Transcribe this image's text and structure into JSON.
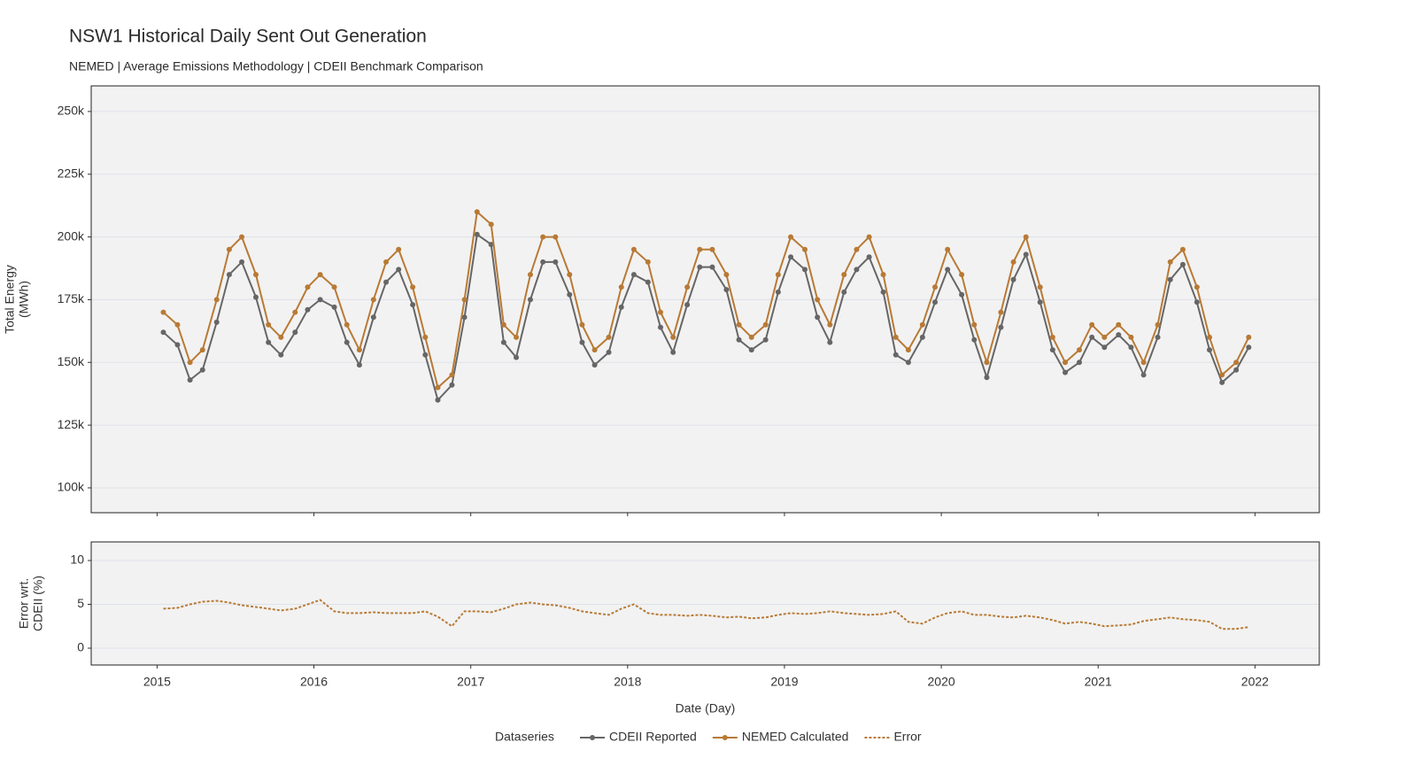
{
  "chart_data": [
    {
      "type": "line",
      "title": "NSW1 Historical Daily Sent Out Generation",
      "subtitle": "NEMED | Average Emissions Methodology | CDEII Benchmark Comparison",
      "y_label": [
        "Total Energy",
        "(MWh)"
      ],
      "legend_title": "Dataseries",
      "x": [
        2015.04,
        2015.13,
        2015.21,
        2015.29,
        2015.38,
        2015.46,
        2015.54,
        2015.63,
        2015.71,
        2015.79,
        2015.88,
        2015.96,
        2016.04,
        2016.13,
        2016.21,
        2016.29,
        2016.38,
        2016.46,
        2016.54,
        2016.63,
        2016.71,
        2016.79,
        2016.88,
        2016.96,
        2017.04,
        2017.13,
        2017.21,
        2017.29,
        2017.38,
        2017.46,
        2017.54,
        2017.63,
        2017.71,
        2017.79,
        2017.88,
        2017.96,
        2018.04,
        2018.13,
        2018.21,
        2018.29,
        2018.38,
        2018.46,
        2018.54,
        2018.63,
        2018.71,
        2018.79,
        2018.88,
        2018.96,
        2019.04,
        2019.13,
        2019.21,
        2019.29,
        2019.38,
        2019.46,
        2019.54,
        2019.63,
        2019.71,
        2019.79,
        2019.88,
        2019.96,
        2020.04,
        2020.13,
        2020.21,
        2020.29,
        2020.38,
        2020.46,
        2020.54,
        2020.63,
        2020.71,
        2020.79,
        2020.88,
        2020.96,
        2021.04,
        2021.13,
        2021.21,
        2021.29,
        2021.38,
        2021.46,
        2021.54,
        2021.63,
        2021.71,
        2021.79,
        2021.88,
        2021.96
      ],
      "xlim": [
        2014.58,
        2022.41
      ],
      "xticks": [
        2015,
        2016,
        2017,
        2018,
        2019,
        2020,
        2021,
        2022
      ],
      "ylim": [
        90100,
        260200
      ],
      "yticks": [
        {
          "value": 100000,
          "label": "100k"
        },
        {
          "value": 125000,
          "label": "125k"
        },
        {
          "value": 150000,
          "label": "150k"
        },
        {
          "value": 175000,
          "label": "175k"
        },
        {
          "value": 200000,
          "label": "200k"
        },
        {
          "value": 225000,
          "label": "225k"
        },
        {
          "value": 250000,
          "label": "250k"
        }
      ],
      "grid": true,
      "series": [
        {
          "name": "CDEII Reported",
          "color": "#666666",
          "values": [
            162000,
            157000,
            143000,
            147000,
            166000,
            185000,
            190000,
            176000,
            158000,
            153000,
            162000,
            171000,
            175000,
            172000,
            158000,
            149000,
            168000,
            182000,
            187000,
            173000,
            153000,
            135000,
            141000,
            168000,
            201000,
            197000,
            158000,
            152000,
            175000,
            190000,
            190000,
            177000,
            158000,
            149000,
            154000,
            172000,
            185000,
            182000,
            164000,
            154000,
            173000,
            188000,
            188000,
            179000,
            159000,
            155000,
            159000,
            178000,
            192000,
            187000,
            168000,
            158000,
            178000,
            187000,
            192000,
            178000,
            153000,
            150000,
            160000,
            174000,
            187000,
            177000,
            159000,
            144000,
            164000,
            183000,
            193000,
            174000,
            155000,
            146000,
            150000,
            160000,
            156000,
            161000,
            156000,
            145000,
            160000,
            183000,
            189000,
            174000,
            155000,
            142000,
            147000,
            156000
          ]
        },
        {
          "name": "NEMED Calculated",
          "color": "#b87a35",
          "values": [
            170000,
            165000,
            150000,
            155000,
            175000,
            195000,
            200000,
            185000,
            165000,
            160000,
            170000,
            180000,
            185000,
            180000,
            165000,
            155000,
            175000,
            190000,
            195000,
            180000,
            160000,
            140000,
            145000,
            175000,
            210000,
            205000,
            165000,
            160000,
            185000,
            200000,
            200000,
            185000,
            165000,
            155000,
            160000,
            180000,
            195000,
            190000,
            170000,
            160000,
            180000,
            195000,
            195000,
            185000,
            165000,
            160000,
            165000,
            185000,
            200000,
            195000,
            175000,
            165000,
            185000,
            195000,
            200000,
            185000,
            160000,
            155000,
            165000,
            180000,
            195000,
            185000,
            165000,
            150000,
            170000,
            190000,
            200000,
            180000,
            160000,
            150000,
            155000,
            165000,
            160000,
            165000,
            160000,
            150000,
            165000,
            190000,
            195000,
            180000,
            160000,
            145000,
            150000,
            160000
          ]
        }
      ]
    },
    {
      "type": "line",
      "x_label": "Date (Day)",
      "y_label": [
        "Error wrt.",
        "CDEII (%)"
      ],
      "x": [
        2015.04,
        2015.13,
        2015.21,
        2015.29,
        2015.38,
        2015.46,
        2015.54,
        2015.63,
        2015.71,
        2015.79,
        2015.88,
        2015.96,
        2016.04,
        2016.13,
        2016.21,
        2016.29,
        2016.38,
        2016.46,
        2016.54,
        2016.63,
        2016.71,
        2016.79,
        2016.88,
        2016.96,
        2017.04,
        2017.13,
        2017.21,
        2017.29,
        2017.38,
        2017.46,
        2017.54,
        2017.63,
        2017.71,
        2017.79,
        2017.88,
        2017.96,
        2018.04,
        2018.13,
        2018.21,
        2018.29,
        2018.38,
        2018.46,
        2018.54,
        2018.63,
        2018.71,
        2018.79,
        2018.88,
        2018.96,
        2019.04,
        2019.13,
        2019.21,
        2019.29,
        2019.38,
        2019.46,
        2019.54,
        2019.63,
        2019.71,
        2019.79,
        2019.88,
        2019.96,
        2020.04,
        2020.13,
        2020.21,
        2020.29,
        2020.38,
        2020.46,
        2020.54,
        2020.63,
        2020.71,
        2020.79,
        2020.88,
        2020.96,
        2021.04,
        2021.13,
        2021.21,
        2021.29,
        2021.38,
        2021.46,
        2021.54,
        2021.63,
        2021.71,
        2021.79,
        2021.88,
        2021.96
      ],
      "xlim": [
        2014.58,
        2022.41
      ],
      "xticks": [
        2015,
        2016,
        2017,
        2018,
        2019,
        2020,
        2021,
        2022
      ],
      "ylim": [
        -1.92,
        12.12
      ],
      "yticks": [
        0,
        5,
        10
      ],
      "grid": true,
      "series": [
        {
          "name": "Error",
          "color": "#b87a35",
          "dashed": true,
          "values": [
            4.5,
            4.6,
            5,
            5.3,
            5.4,
            5.2,
            4.9,
            4.7,
            4.5,
            4.3,
            4.5,
            5,
            5.5,
            4.2,
            4,
            4,
            4.1,
            4,
            4,
            4,
            4.2,
            3.6,
            2.5,
            4.2,
            4.2,
            4.1,
            4.5,
            5,
            5.2,
            5,
            4.9,
            4.6,
            4.2,
            4,
            3.8,
            4.5,
            5,
            4,
            3.8,
            3.8,
            3.7,
            3.8,
            3.7,
            3.5,
            3.6,
            3.4,
            3.5,
            3.8,
            4,
            3.9,
            4,
            4.2,
            4,
            3.9,
            3.8,
            3.9,
            4.2,
            3,
            2.8,
            3.5,
            4,
            4.2,
            3.8,
            3.8,
            3.6,
            3.5,
            3.7,
            3.5,
            3.2,
            2.8,
            3,
            2.8,
            2.5,
            2.6,
            2.7,
            3.1,
            3.3,
            3.5,
            3.3,
            3.2,
            3,
            2.2,
            2.2,
            2.4
          ]
        }
      ]
    }
  ]
}
